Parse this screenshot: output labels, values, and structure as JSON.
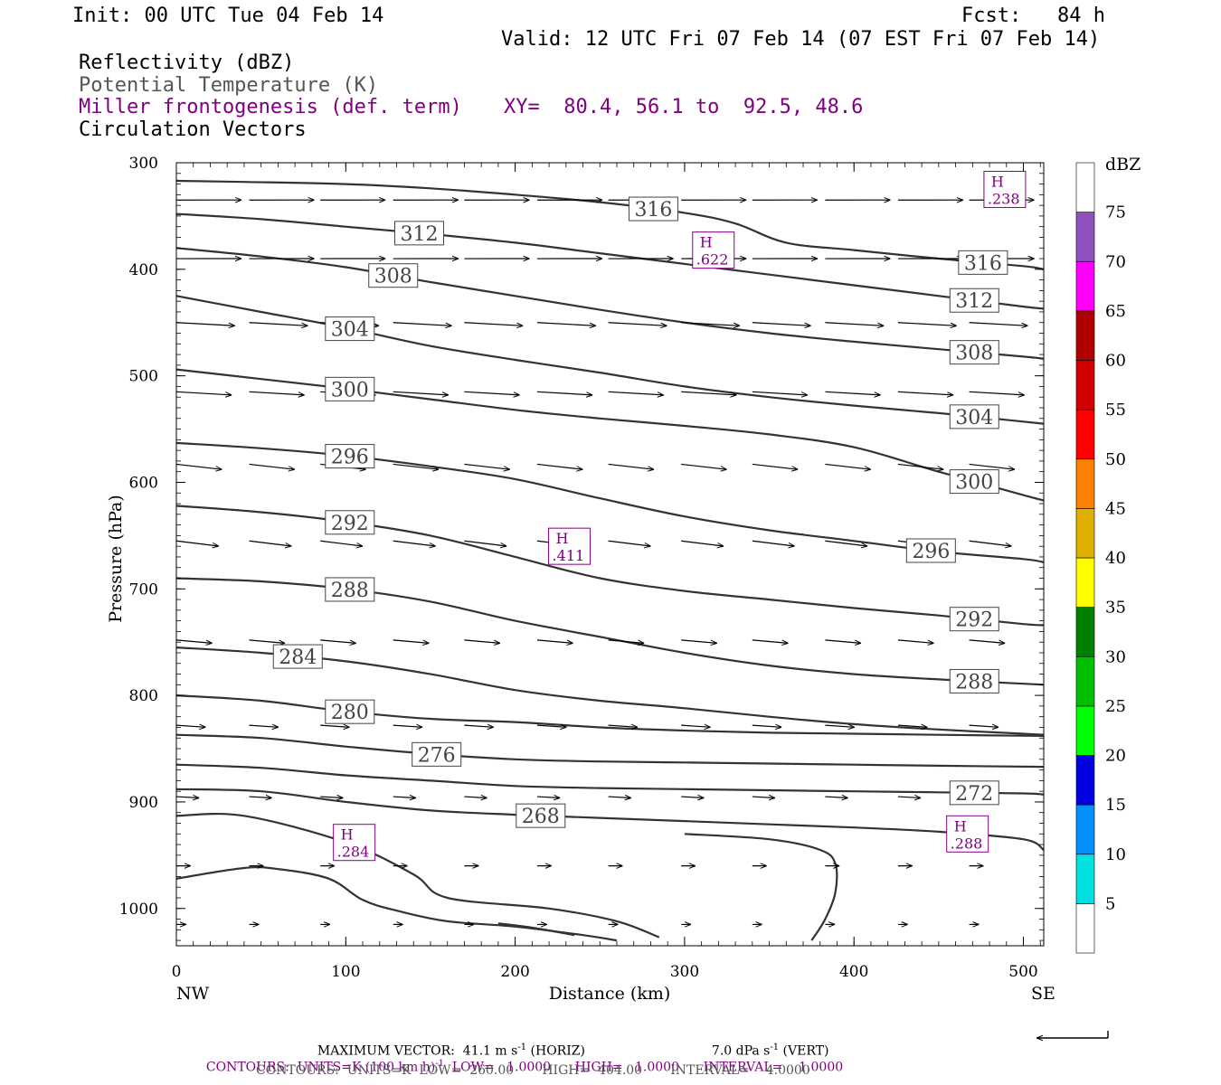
{
  "header": {
    "init": "Init: 00 UTC Tue 04 Feb 14",
    "fcst": "Fcst:   84 h",
    "valid": "Valid: 12 UTC Fri 07 Feb 14 (07 EST Fri 07 Feb 14)",
    "field1": "Reflectivity (dBZ)",
    "field2": "Potential Temperature (K)",
    "field3": "Miller frontogenesis (def. term)",
    "xy": "XY=  80.4, 56.1 to  92.5, 48.6",
    "field4": "Circulation Vectors"
  },
  "footer": {
    "max_vector_prefix": "MAXIMUM VECTOR:  41.1 m s",
    "sup_neg1": "-1",
    "horiz": " (HORIZ)",
    "vert_value": "7.0 dPa s",
    "vert": " (VERT)",
    "contours_purple_a": "CONTOURS:  UNITS=K (100 km h)",
    "contours_purple_b": "  LOW=   1.0000      HIGH=   1.0000      INTERVAL=    1.0000",
    "contours_black": "CONTOURS:  UNITS=K  LOW=  260.00       HIGH=  404.00       INTERVAL=    4.0000"
  },
  "chart_data": {
    "type": "line",
    "xlabel": "Distance (km)",
    "ylabel": "Pressure (hPa)",
    "xlim": [
      0,
      512
    ],
    "ylim": [
      1035,
      300
    ],
    "x_ticks": [
      "0",
      "100",
      "200",
      "300",
      "400",
      "500"
    ],
    "y_ticks": [
      "300",
      "400",
      "500",
      "600",
      "700",
      "800",
      "900",
      "1000"
    ],
    "x_end_labels": {
      "left": "NW",
      "right": "SE"
    },
    "grid": false,
    "colorbar": {
      "unit": "dBZ",
      "labels": [
        "5",
        "10",
        "15",
        "20",
        "25",
        "30",
        "35",
        "40",
        "45",
        "50",
        "55",
        "60",
        "65",
        "70",
        "75"
      ],
      "colors": [
        "#ffffff",
        "#00e0e0",
        "#0090ff",
        "#0000e0",
        "#00ff00",
        "#00c000",
        "#008000",
        "#ffff00",
        "#e0b000",
        "#ff8000",
        "#ff0000",
        "#d00000",
        "#b00000",
        "#ff00ff",
        "#9050c0",
        "#ffffff"
      ]
    },
    "theta_series": [
      {
        "name": "316",
        "points": [
          [
            0,
            317
          ],
          [
            40,
            318
          ],
          [
            100,
            320
          ],
          [
            150,
            324
          ],
          [
            200,
            330
          ],
          [
            250,
            337
          ],
          [
            300,
            347
          ],
          [
            330,
            357
          ],
          [
            360,
            375
          ],
          [
            400,
            382
          ],
          [
            450,
            390
          ],
          [
            500,
            397
          ],
          [
            512,
            400
          ]
        ]
      },
      {
        "name": "312",
        "points": [
          [
            0,
            348
          ],
          [
            50,
            353
          ],
          [
            100,
            360
          ],
          [
            150,
            367
          ],
          [
            200,
            375
          ],
          [
            250,
            385
          ],
          [
            300,
            395
          ],
          [
            350,
            405
          ],
          [
            400,
            415
          ],
          [
            450,
            425
          ],
          [
            500,
            435
          ],
          [
            512,
            437
          ]
        ]
      },
      {
        "name": "308",
        "points": [
          [
            0,
            380
          ],
          [
            50,
            388
          ],
          [
            100,
            398
          ],
          [
            150,
            412
          ],
          [
            200,
            425
          ],
          [
            250,
            438
          ],
          [
            300,
            450
          ],
          [
            350,
            460
          ],
          [
            400,
            468
          ],
          [
            450,
            475
          ],
          [
            500,
            482
          ],
          [
            512,
            484
          ]
        ]
      },
      {
        "name": "304",
        "points": [
          [
            0,
            425
          ],
          [
            50,
            440
          ],
          [
            100,
            455
          ],
          [
            150,
            472
          ],
          [
            200,
            485
          ],
          [
            250,
            497
          ],
          [
            300,
            510
          ],
          [
            350,
            520
          ],
          [
            400,
            528
          ],
          [
            450,
            535
          ],
          [
            500,
            543
          ],
          [
            512,
            545
          ]
        ]
      },
      {
        "name": "300",
        "points": [
          [
            0,
            494
          ],
          [
            50,
            503
          ],
          [
            100,
            512
          ],
          [
            150,
            522
          ],
          [
            200,
            532
          ],
          [
            250,
            540
          ],
          [
            300,
            547
          ],
          [
            350,
            555
          ],
          [
            400,
            567
          ],
          [
            450,
            590
          ],
          [
            500,
            612
          ],
          [
            512,
            617
          ]
        ]
      },
      {
        "name": "296",
        "points": [
          [
            0,
            563
          ],
          [
            50,
            568
          ],
          [
            100,
            575
          ],
          [
            150,
            585
          ],
          [
            200,
            597
          ],
          [
            250,
            615
          ],
          [
            300,
            632
          ],
          [
            350,
            645
          ],
          [
            400,
            655
          ],
          [
            450,
            665
          ],
          [
            500,
            672
          ],
          [
            512,
            675
          ]
        ]
      },
      {
        "name": "292",
        "points": [
          [
            0,
            622
          ],
          [
            50,
            628
          ],
          [
            100,
            637
          ],
          [
            150,
            650
          ],
          [
            200,
            670
          ],
          [
            250,
            690
          ],
          [
            300,
            702
          ],
          [
            350,
            710
          ],
          [
            400,
            718
          ],
          [
            450,
            725
          ],
          [
            500,
            733
          ],
          [
            512,
            734
          ]
        ]
      },
      {
        "name": "288",
        "points": [
          [
            0,
            690
          ],
          [
            50,
            693
          ],
          [
            100,
            700
          ],
          [
            150,
            712
          ],
          [
            200,
            730
          ],
          [
            250,
            745
          ],
          [
            300,
            760
          ],
          [
            350,
            772
          ],
          [
            400,
            780
          ],
          [
            450,
            785
          ],
          [
            500,
            789
          ],
          [
            512,
            790
          ]
        ]
      },
      {
        "name": "284",
        "points": [
          [
            0,
            755
          ],
          [
            50,
            760
          ],
          [
            100,
            768
          ],
          [
            150,
            780
          ],
          [
            200,
            795
          ],
          [
            250,
            805
          ],
          [
            300,
            812
          ],
          [
            350,
            820
          ],
          [
            400,
            827
          ],
          [
            450,
            832
          ],
          [
            500,
            836
          ],
          [
            512,
            837
          ]
        ]
      },
      {
        "name": "280",
        "points": [
          [
            0,
            800
          ],
          [
            50,
            805
          ],
          [
            100,
            815
          ],
          [
            150,
            822
          ],
          [
            200,
            825
          ],
          [
            250,
            830
          ],
          [
            300,
            833
          ],
          [
            350,
            835
          ],
          [
            400,
            836
          ],
          [
            450,
            837
          ],
          [
            512,
            838
          ]
        ]
      },
      {
        "name": "276",
        "points": [
          [
            0,
            837
          ],
          [
            50,
            840
          ],
          [
            100,
            848
          ],
          [
            150,
            855
          ],
          [
            200,
            860
          ],
          [
            250,
            862
          ],
          [
            300,
            863
          ],
          [
            350,
            864
          ],
          [
            400,
            865
          ],
          [
            450,
            866
          ],
          [
            512,
            867
          ]
        ]
      },
      {
        "name": "272",
        "points": [
          [
            0,
            865
          ],
          [
            50,
            868
          ],
          [
            100,
            875
          ],
          [
            150,
            880
          ],
          [
            200,
            885
          ],
          [
            250,
            887
          ],
          [
            300,
            888
          ],
          [
            350,
            889
          ],
          [
            400,
            890
          ],
          [
            450,
            891
          ],
          [
            500,
            892
          ],
          [
            512,
            893
          ]
        ]
      },
      {
        "name": "268",
        "points": [
          [
            0,
            888
          ],
          [
            50,
            890
          ],
          [
            100,
            900
          ],
          [
            150,
            908
          ],
          [
            200,
            912
          ],
          [
            250,
            915
          ],
          [
            300,
            918
          ],
          [
            350,
            921
          ],
          [
            400,
            924
          ],
          [
            450,
            928
          ],
          [
            500,
            935
          ],
          [
            512,
            945
          ]
        ]
      }
    ],
    "lower_contours": [
      {
        "name": "264-a",
        "points": [
          [
            0,
            913
          ],
          [
            40,
            913
          ],
          [
            100,
            938
          ],
          [
            140,
            968
          ],
          [
            160,
            990
          ],
          [
            220,
            1000
          ],
          [
            260,
            1012
          ],
          [
            285,
            1027
          ]
        ]
      },
      {
        "name": "264-b",
        "points": [
          [
            0,
            972
          ],
          [
            40,
            962
          ],
          [
            60,
            963
          ],
          [
            90,
            972
          ],
          [
            110,
            992
          ],
          [
            130,
            1002
          ],
          [
            160,
            1012
          ],
          [
            200,
            1017
          ],
          [
            240,
            1025
          ],
          [
            260,
            1030
          ]
        ]
      },
      {
        "name": "264-c",
        "points": [
          [
            300,
            930
          ],
          [
            350,
            935
          ],
          [
            380,
            945
          ],
          [
            389,
            958
          ],
          [
            389,
            985
          ],
          [
            383,
            1010
          ],
          [
            375,
            1030
          ]
        ]
      },
      {
        "name": "264-d",
        "points": [
          [
            190,
            1014
          ],
          [
            210,
            1018
          ],
          [
            235,
            1025
          ]
        ]
      }
    ],
    "frontogenesis_highs": [
      {
        "label": "H",
        "value": ".238",
        "x": 489,
        "p": 325
      },
      {
        "label": "H",
        "value": ".622",
        "x": 317,
        "p": 382
      },
      {
        "label": "H",
        "value": ".411",
        "x": 232,
        "p": 660
      },
      {
        "label": "H",
        "value": ".284",
        "x": 105,
        "p": 938
      },
      {
        "label": "H",
        "value": ".288",
        "x": 467,
        "p": 930
      }
    ],
    "vectors": {
      "x_columns": [
        0,
        43,
        85,
        128,
        170,
        213,
        255,
        298,
        340,
        383,
        426,
        468,
        511
      ],
      "rows": [
        {
          "p": 335,
          "u": 1.0,
          "w": 0
        },
        {
          "p": 390,
          "u": 1.0,
          "w": 0
        },
        {
          "p": 450,
          "u": 0.9,
          "w": -0.05
        },
        {
          "p": 515,
          "u": 0.85,
          "w": -0.05
        },
        {
          "p": 583,
          "u": 0.7,
          "w": -0.08
        },
        {
          "p": 655,
          "u": 0.65,
          "w": -0.08
        },
        {
          "p": 748,
          "u": 0.55,
          "w": -0.05
        },
        {
          "p": 828,
          "u": 0.45,
          "w": -0.03
        },
        {
          "p": 895,
          "u": 0.35,
          "w": -0.02
        },
        {
          "p": 960,
          "u": 0.22,
          "w": 0
        },
        {
          "p": 1015,
          "u": 0.15,
          "w": 0
        }
      ]
    }
  }
}
